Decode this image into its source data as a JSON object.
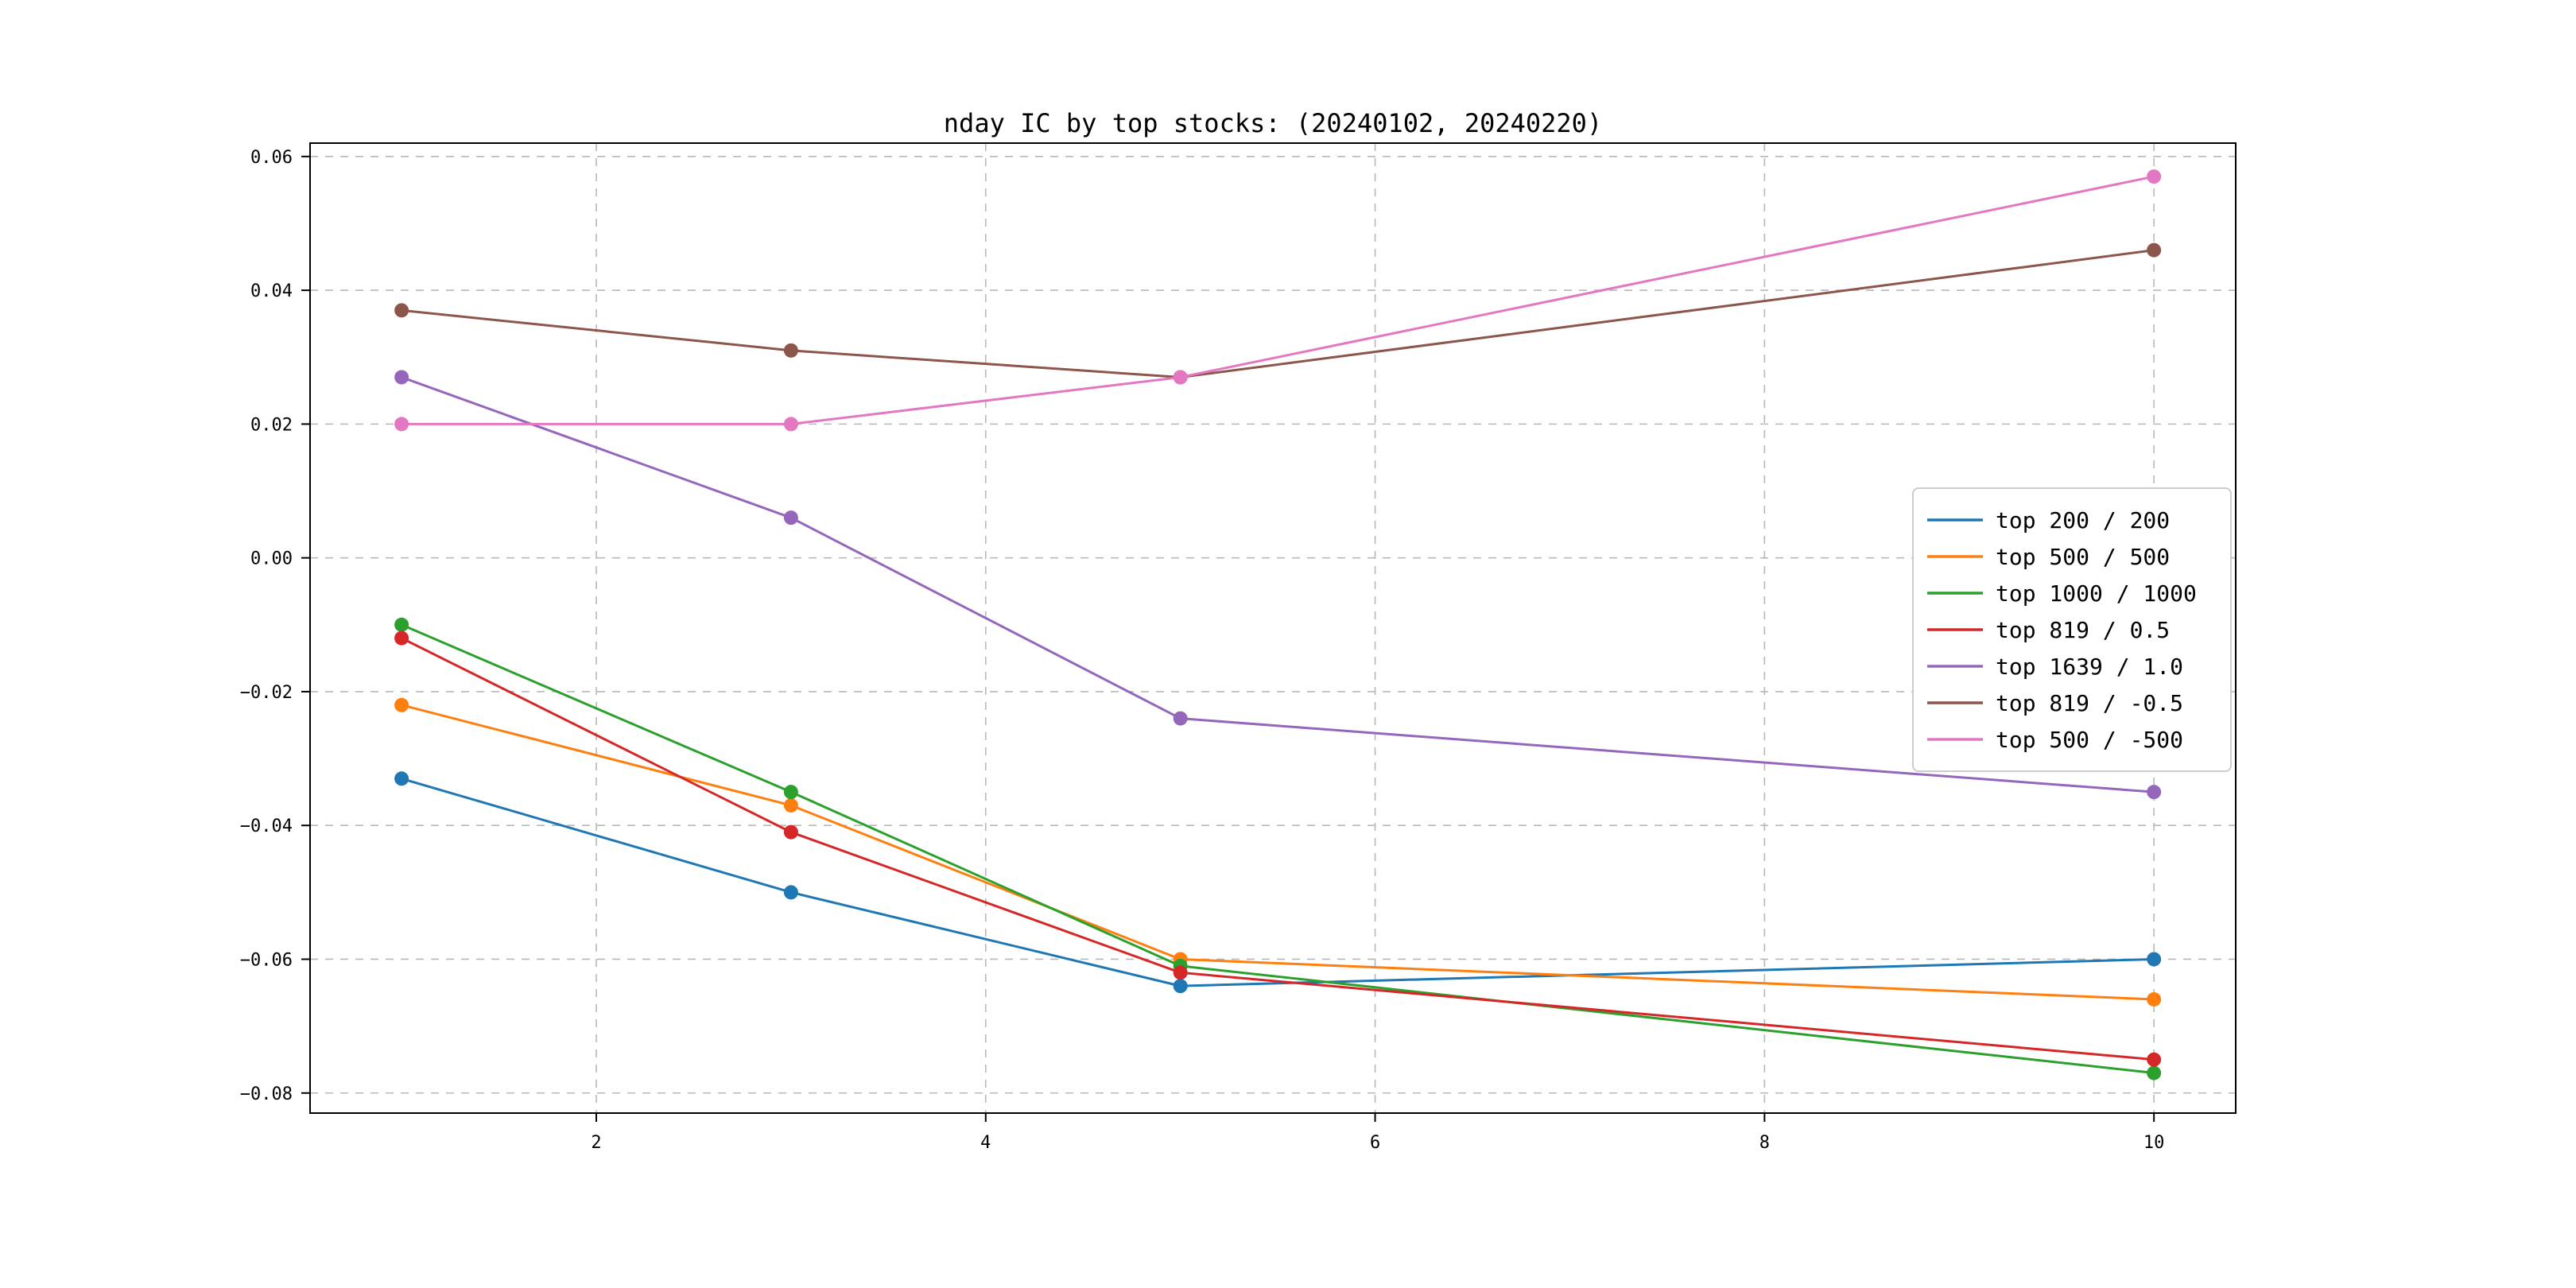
{
  "chart_data": {
    "type": "line",
    "title": "nday IC by top stocks: (20240102, 20240220)",
    "x": [
      1,
      3,
      5,
      10
    ],
    "series": [
      {
        "name": "top 200 / 200",
        "color": "#1f77b4",
        "values": [
          -0.033,
          -0.05,
          -0.064,
          -0.06
        ]
      },
      {
        "name": "top 500 / 500",
        "color": "#ff7f0e",
        "values": [
          -0.022,
          -0.037,
          -0.06,
          -0.066
        ]
      },
      {
        "name": "top 1000 / 1000",
        "color": "#2ca02c",
        "values": [
          -0.01,
          -0.035,
          -0.061,
          -0.077
        ]
      },
      {
        "name": "top 819 / 0.5",
        "color": "#d62728",
        "values": [
          -0.012,
          -0.041,
          -0.062,
          -0.075
        ]
      },
      {
        "name": "top 1639 / 1.0",
        "color": "#9467bd",
        "values": [
          0.027,
          0.006,
          -0.024,
          -0.035
        ]
      },
      {
        "name": "top 819 / -0.5",
        "color": "#8c564b",
        "values": [
          0.037,
          0.031,
          0.027,
          0.046
        ]
      },
      {
        "name": "top 500 / -500",
        "color": "#e377c2",
        "values": [
          0.02,
          0.02,
          0.027,
          0.057
        ]
      }
    ],
    "xticks": [
      2,
      4,
      6,
      8,
      10
    ],
    "yticks": [
      -0.08,
      -0.06,
      -0.04,
      -0.02,
      0.0,
      0.02,
      0.04,
      0.06
    ],
    "xlim": [
      0.53,
      10.42
    ],
    "ylim": [
      -0.083,
      0.062
    ],
    "grid": true,
    "grid_style": "dashed",
    "grid_color": "#b8b8b8",
    "marker": "circle",
    "legend_position": "right-middle",
    "legend_border_color": "#cccccc",
    "background_color": "#ffffff"
  }
}
